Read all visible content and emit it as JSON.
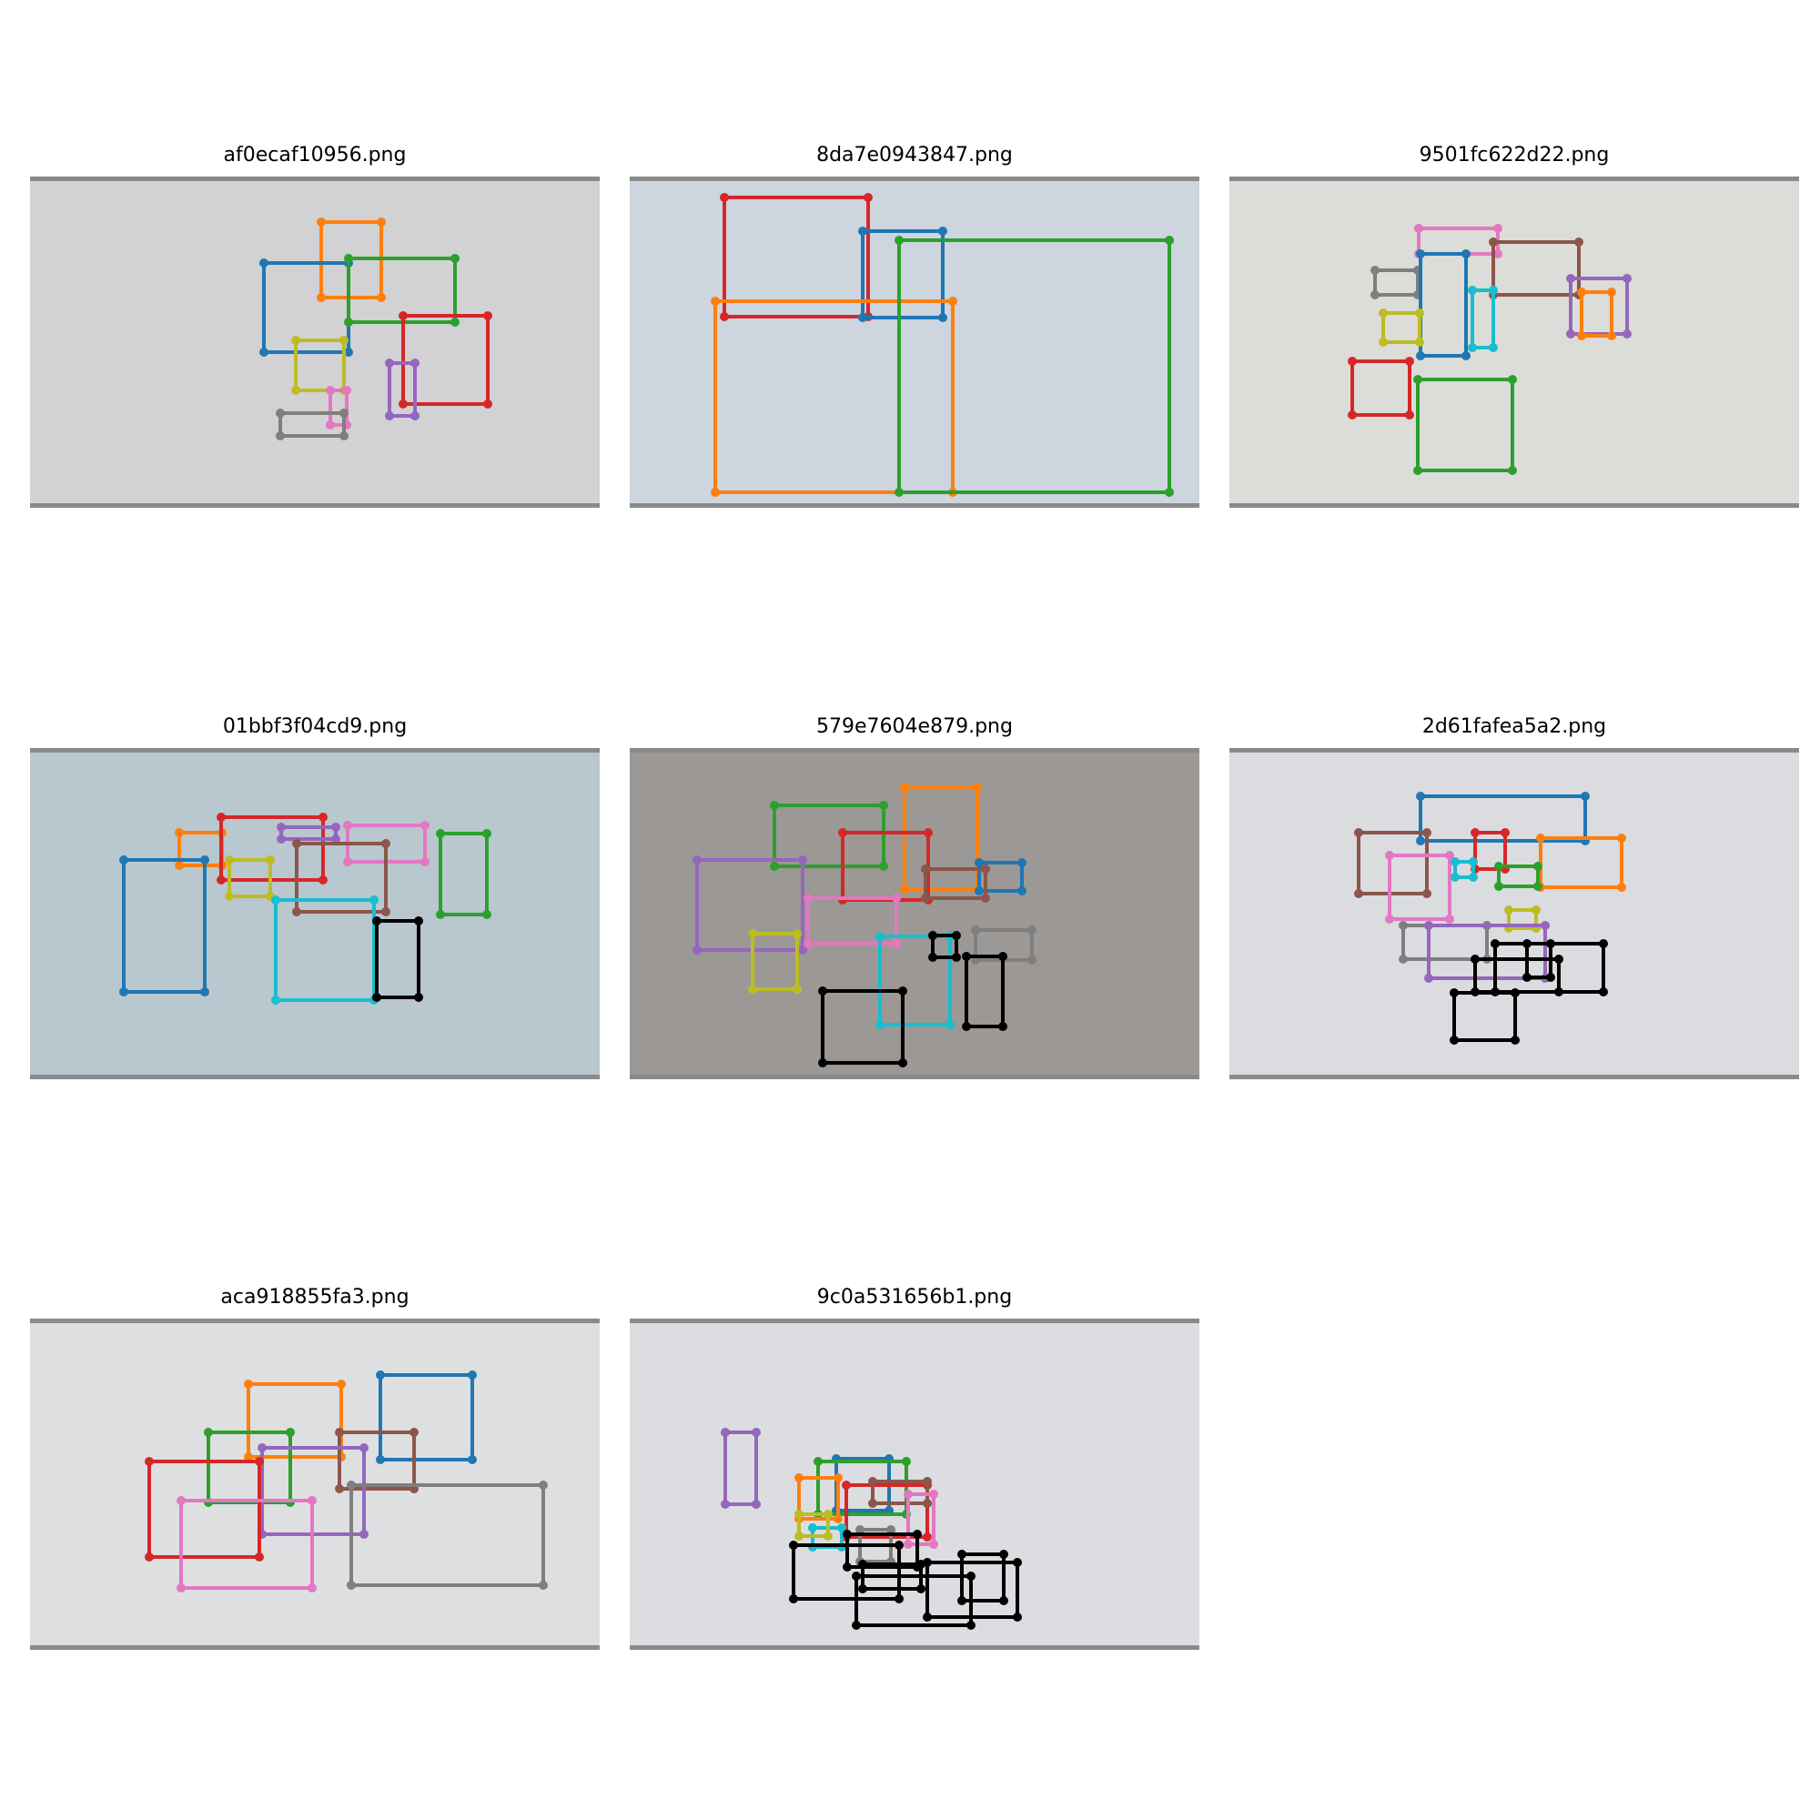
{
  "figure": {
    "panels": [
      {
        "title": "af0ecaf10956.png",
        "photo_color": "#d2d1d4",
        "box_colors": [
          "orange",
          "blue",
          "green",
          "red",
          "yellow",
          "purple",
          "pink",
          "gray"
        ]
      },
      {
        "title": "8da7e0943847.png",
        "photo_color": "#cdd5de",
        "box_colors": [
          "red",
          "blue",
          "orange",
          "green"
        ]
      },
      {
        "title": "9501fc622d22.png",
        "photo_color": "#dcdcd8",
        "box_colors": [
          "pink",
          "brown",
          "gray",
          "blue",
          "cyan",
          "purple",
          "orange",
          "yellow",
          "red",
          "green"
        ]
      },
      {
        "title": "01bbf3f04cd9.png",
        "photo_color": "#b9c7cf",
        "box_colors": [
          "orange",
          "red",
          "purple",
          "pink",
          "blue",
          "brown",
          "green",
          "yellow",
          "cyan"
        ]
      },
      {
        "title": "579e7604e879.png",
        "photo_color": "#9b9896",
        "box_colors": [
          "green",
          "orange",
          "red",
          "purple",
          "blue",
          "brown",
          "pink",
          "yellow",
          "cyan",
          "gray"
        ]
      },
      {
        "title": "2d61fafea5a2.png",
        "photo_color": "#dadcdf",
        "box_colors": [
          "blue",
          "brown",
          "red",
          "orange",
          "green",
          "pink",
          "cyan",
          "yellow",
          "gray",
          "purple"
        ]
      },
      {
        "title": "aca918855fa3.png",
        "photo_color": "#dedfe1",
        "box_colors": [
          "orange",
          "blue",
          "green",
          "brown",
          "purple",
          "red",
          "gray",
          "pink"
        ]
      },
      {
        "title": "9c0a531656b1.png",
        "photo_color": "#dcdde0",
        "box_colors": [
          "purple",
          "blue",
          "green",
          "orange",
          "red",
          "brown",
          "pink",
          "cyan",
          "yellow",
          "gray"
        ]
      }
    ]
  },
  "palette": {
    "blue": "#1f77b4",
    "orange": "#ff7f0e",
    "green": "#2ca02c",
    "red": "#d62728",
    "purple": "#9467bd",
    "brown": "#8c564b",
    "pink": "#e377c2",
    "gray": "#7f7f7f",
    "yellow": "#bcbd22",
    "cyan": "#17becf"
  }
}
